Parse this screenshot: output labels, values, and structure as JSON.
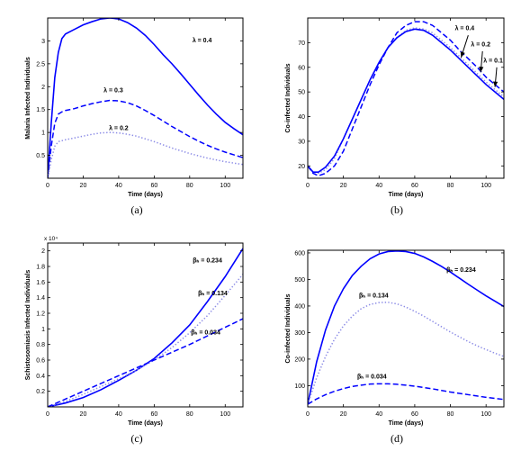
{
  "chart_data": [
    {
      "type": "line",
      "caption": "(a)",
      "xlabel": "Time (days)",
      "ylabel": "Malaria Infected Individuals",
      "xlim": [
        0,
        110
      ],
      "ylim": [
        0,
        3.5
      ],
      "xticks": [
        0,
        20,
        40,
        60,
        80,
        100
      ],
      "yticks": [
        0.5,
        1,
        1.5,
        2,
        2.5,
        3
      ],
      "ytick_labels": [
        "0.5",
        "1",
        "1.5",
        "2",
        "2.5",
        "3"
      ],
      "y_multiplier": "",
      "grid": false,
      "series": [
        {
          "name": "λ = 0.4",
          "style": "solid",
          "color": "#0000ff",
          "x": [
            0,
            2,
            4,
            6,
            8,
            10,
            15,
            20,
            25,
            30,
            35,
            40,
            45,
            50,
            55,
            60,
            65,
            70,
            75,
            80,
            85,
            90,
            95,
            100,
            105,
            110
          ],
          "y": [
            0,
            1.2,
            2.2,
            2.75,
            3.05,
            3.15,
            3.25,
            3.35,
            3.42,
            3.48,
            3.5,
            3.48,
            3.4,
            3.28,
            3.12,
            2.92,
            2.7,
            2.5,
            2.28,
            2.05,
            1.82,
            1.6,
            1.4,
            1.22,
            1.08,
            0.95
          ]
        },
        {
          "name": "λ = 0.3",
          "style": "dashed",
          "color": "#0000ff",
          "x": [
            0,
            2,
            4,
            6,
            8,
            10,
            15,
            20,
            25,
            30,
            35,
            40,
            45,
            50,
            55,
            60,
            65,
            70,
            75,
            80,
            85,
            90,
            95,
            100,
            105,
            110
          ],
          "y": [
            0,
            0.7,
            1.2,
            1.4,
            1.45,
            1.48,
            1.52,
            1.58,
            1.63,
            1.67,
            1.7,
            1.69,
            1.65,
            1.58,
            1.48,
            1.37,
            1.25,
            1.13,
            1.02,
            0.91,
            0.81,
            0.72,
            0.64,
            0.57,
            0.51,
            0.45
          ]
        },
        {
          "name": "λ = 0.2",
          "style": "dotted",
          "color": "#8c8ce6",
          "x": [
            0,
            2,
            4,
            6,
            8,
            10,
            15,
            20,
            25,
            30,
            35,
            40,
            45,
            50,
            55,
            60,
            65,
            70,
            75,
            80,
            85,
            90,
            95,
            100,
            105,
            110
          ],
          "y": [
            0,
            0.4,
            0.7,
            0.8,
            0.82,
            0.84,
            0.88,
            0.92,
            0.96,
            0.99,
            1.0,
            0.99,
            0.96,
            0.92,
            0.86,
            0.8,
            0.73,
            0.66,
            0.6,
            0.54,
            0.49,
            0.44,
            0.4,
            0.36,
            0.33,
            0.3
          ]
        }
      ],
      "annotations": [
        {
          "text": "λ = 0.4",
          "x": 87,
          "y": 2.97
        },
        {
          "text": "λ = 0.3",
          "x": 37,
          "y": 1.88
        },
        {
          "text": "λ = 0.2",
          "x": 40,
          "y": 1.05
        }
      ],
      "arrows": []
    },
    {
      "type": "line",
      "caption": "(b)",
      "xlabel": "Time (days)",
      "ylabel": "Co-infected Individuals",
      "xlim": [
        0,
        110
      ],
      "ylim": [
        15,
        80
      ],
      "xticks": [
        0,
        20,
        40,
        60,
        80,
        100
      ],
      "yticks": [
        20,
        30,
        40,
        50,
        60,
        70
      ],
      "ytick_labels": [
        "20",
        "30",
        "40",
        "50",
        "60",
        "70"
      ],
      "y_multiplier": "",
      "grid": false,
      "series": [
        {
          "name": "λ = 0.4",
          "style": "dashed",
          "color": "#0000ff",
          "x": [
            0,
            3,
            6,
            10,
            15,
            20,
            25,
            30,
            35,
            40,
            45,
            50,
            55,
            60,
            65,
            70,
            75,
            80,
            85,
            90,
            95,
            100,
            105,
            110
          ],
          "y": [
            20,
            17,
            16,
            17,
            20,
            26,
            35,
            44,
            53,
            61,
            68,
            74,
            77,
            78.5,
            78.5,
            77,
            74,
            71,
            67,
            63.5,
            60,
            56,
            53,
            50
          ]
        },
        {
          "name": "λ = 0.2",
          "style": "dotted",
          "color": "#8c8ce6",
          "x": [
            0,
            3,
            6,
            10,
            15,
            20,
            25,
            30,
            35,
            40,
            45,
            50,
            55,
            60,
            65,
            70,
            75,
            80,
            85,
            90,
            95,
            100,
            105,
            110
          ],
          "y": [
            20,
            17.5,
            17,
            18.5,
            23,
            31,
            39,
            47,
            55,
            62,
            68,
            72,
            75,
            76,
            75.5,
            74,
            71,
            68,
            64.5,
            61,
            57.5,
            54,
            51,
            48
          ]
        },
        {
          "name": "λ = 0.1",
          "style": "solid",
          "color": "#0000ff",
          "x": [
            0,
            3,
            6,
            10,
            15,
            20,
            25,
            30,
            35,
            40,
            45,
            50,
            55,
            60,
            65,
            70,
            75,
            80,
            85,
            90,
            95,
            100,
            105,
            110
          ],
          "y": [
            20,
            17.5,
            17.5,
            19.5,
            24,
            31,
            39,
            47,
            55,
            62,
            68,
            72,
            74.5,
            75.5,
            75,
            73,
            70,
            67,
            63.5,
            60,
            56.5,
            53,
            50,
            47
          ]
        }
      ],
      "annotations": [
        {
          "text": "λ = 0.4",
          "x": 88,
          "y": 75
        },
        {
          "text": "λ = 0.2",
          "x": 97,
          "y": 68.5
        },
        {
          "text": "λ = 0.1",
          "x": 104,
          "y": 62
        }
      ],
      "arrows": [
        {
          "from": [
            90,
            73
          ],
          "to": [
            86,
            64
          ]
        },
        {
          "from": [
            98,
            66.5
          ],
          "to": [
            97,
            58
          ]
        },
        {
          "from": [
            106,
            60
          ],
          "to": [
            105,
            52
          ]
        }
      ]
    },
    {
      "type": "line",
      "caption": "(c)",
      "xlabel": "Time (days)",
      "ylabel": "Schistosomiasis Infected Individuals",
      "xlim": [
        0,
        110
      ],
      "ylim": [
        0,
        21000
      ],
      "xticks": [
        0,
        20,
        40,
        60,
        80,
        100
      ],
      "yticks": [
        2000,
        4000,
        6000,
        8000,
        10000,
        12000,
        14000,
        16000,
        18000,
        20000
      ],
      "ytick_labels": [
        "0.2",
        "0.4",
        "0.6",
        "0.8",
        "1",
        "1.2",
        "1.4",
        "1.6",
        "1.8",
        "2"
      ],
      "y_multiplier": "x 10⁴",
      "grid": false,
      "series": [
        {
          "name": "βₕ = 0.234",
          "style": "solid",
          "color": "#0000ff",
          "x": [
            0,
            10,
            20,
            30,
            40,
            50,
            60,
            70,
            80,
            90,
            100,
            110
          ],
          "y": [
            0,
            500,
            1200,
            2200,
            3400,
            4700,
            6200,
            8200,
            10500,
            13500,
            16700,
            20300
          ]
        },
        {
          "name": "βₕ = 0.134",
          "style": "dotted",
          "color": "#8c8ce6",
          "x": [
            0,
            10,
            20,
            30,
            40,
            50,
            60,
            70,
            80,
            90,
            100,
            110
          ],
          "y": [
            0,
            700,
            1600,
            2600,
            3600,
            4700,
            6000,
            7600,
            9500,
            11700,
            14300,
            17000
          ]
        },
        {
          "name": "βₕ = 0.034",
          "style": "dashed",
          "color": "#0000ff",
          "x": [
            0,
            10,
            20,
            30,
            40,
            50,
            60,
            70,
            80,
            90,
            100,
            110
          ],
          "y": [
            0,
            1000,
            2000,
            3000,
            4000,
            5000,
            6000,
            7000,
            8000,
            9100,
            10200,
            11300
          ]
        }
      ],
      "annotations": [
        {
          "text": "βₕ = 0.234",
          "x": 90,
          "y": 18500
        },
        {
          "text": "βₕ = 0.134",
          "x": 93,
          "y": 14300
        },
        {
          "text": "βₕ = 0.034",
          "x": 89,
          "y": 9300
        }
      ],
      "arrows": []
    },
    {
      "type": "line",
      "caption": "(d)",
      "xlabel": "Time (days)",
      "ylabel": "Co-infected Individuals",
      "xlim": [
        0,
        110
      ],
      "ylim": [
        20,
        610
      ],
      "xticks": [
        0,
        20,
        40,
        60,
        80,
        100
      ],
      "yticks": [
        100,
        200,
        300,
        400,
        500,
        600
      ],
      "ytick_labels": [
        "100",
        "200",
        "300",
        "400",
        "500",
        "600"
      ],
      "y_multiplier": "",
      "grid": false,
      "series": [
        {
          "name": "βₕ = 0.234",
          "style": "solid",
          "color": "#0000ff",
          "x": [
            0,
            5,
            10,
            15,
            20,
            25,
            30,
            35,
            40,
            45,
            50,
            55,
            60,
            65,
            70,
            75,
            80,
            85,
            90,
            95,
            100,
            105,
            110
          ],
          "y": [
            30,
            190,
            310,
            400,
            465,
            515,
            550,
            578,
            596,
            605,
            607,
            605,
            598,
            585,
            568,
            549,
            528,
            505,
            482,
            460,
            438,
            418,
            398
          ]
        },
        {
          "name": "βₕ = 0.134",
          "style": "dotted",
          "color": "#8c8ce6",
          "x": [
            0,
            5,
            10,
            15,
            20,
            25,
            30,
            35,
            40,
            45,
            50,
            55,
            60,
            65,
            70,
            75,
            80,
            85,
            90,
            95,
            100,
            105,
            110
          ],
          "y": [
            30,
            130,
            210,
            275,
            325,
            362,
            390,
            406,
            413,
            414,
            408,
            396,
            380,
            362,
            342,
            322,
            302,
            284,
            266,
            250,
            236,
            222,
            210
          ]
        },
        {
          "name": "βₕ = 0.034",
          "style": "dashed",
          "color": "#0000ff",
          "x": [
            0,
            5,
            10,
            15,
            20,
            25,
            30,
            35,
            40,
            45,
            50,
            55,
            60,
            65,
            70,
            75,
            80,
            85,
            90,
            95,
            100,
            105,
            110
          ],
          "y": [
            30,
            50,
            66,
            79,
            89,
            97,
            102,
            106,
            107,
            107,
            105,
            102,
            98,
            93,
            88,
            82,
            76,
            71,
            66,
            61,
            56,
            52,
            48
          ]
        }
      ],
      "annotations": [
        {
          "text": "βₕ = 0.234",
          "x": 86,
          "y": 528
        },
        {
          "text": "βₕ = 0.134",
          "x": 37,
          "y": 432
        },
        {
          "text": "βₕ = 0.034",
          "x": 36,
          "y": 127
        }
      ],
      "arrows": []
    }
  ]
}
